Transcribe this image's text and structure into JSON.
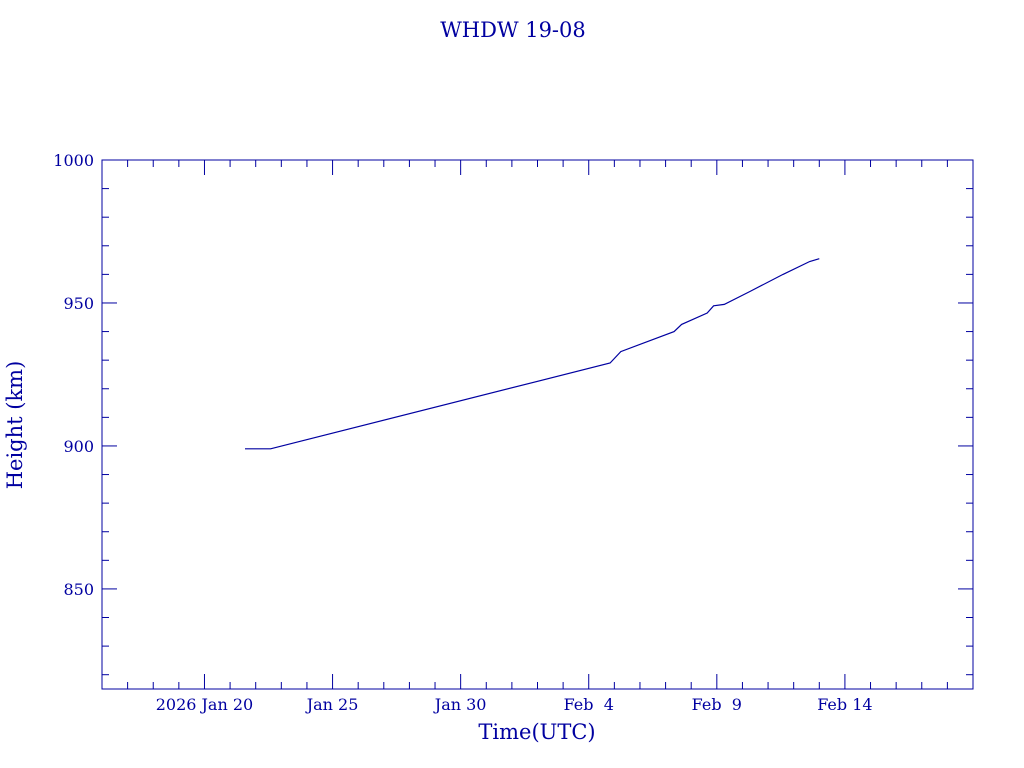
{
  "colors": {
    "ink": "#0000a0",
    "background": "#ffffff"
  },
  "chart_data": {
    "type": "line",
    "title": "WHDW 19-08",
    "xlabel": "Time(UTC)",
    "ylabel": "Height (km)",
    "xlim": [
      "2026-01-16",
      "2026-02-19"
    ],
    "ylim": [
      815,
      1000
    ],
    "y_ticks": [
      850,
      900,
      950,
      1000
    ],
    "x_ticks": [
      {
        "date": "2026-01-20",
        "label": "2026 Jan 20"
      },
      {
        "date": "2026-01-25",
        "label": "Jan 25"
      },
      {
        "date": "2026-01-30",
        "label": "Jan 30"
      },
      {
        "date": "2026-02-04",
        "label": "Feb  4"
      },
      {
        "date": "2026-02-09",
        "label": "Feb  9"
      },
      {
        "date": "2026-02-14",
        "label": "Feb 14"
      }
    ],
    "grid": false,
    "series": [
      {
        "points": [
          {
            "x": "2026-01-21 14:00",
            "y": 899.0
          },
          {
            "x": "2026-01-22 14:00",
            "y": 899.0
          },
          {
            "x": "2026-02-04 20:00",
            "y": 929.0
          },
          {
            "x": "2026-02-05 06:00",
            "y": 933.0
          },
          {
            "x": "2026-02-07 08:00",
            "y": 940.0
          },
          {
            "x": "2026-02-07 15:00",
            "y": 942.5
          },
          {
            "x": "2026-02-08 15:00",
            "y": 946.5
          },
          {
            "x": "2026-02-08 21:00",
            "y": 949.0
          },
          {
            "x": "2026-02-09 07:00",
            "y": 949.5
          },
          {
            "x": "2026-02-10 07:00",
            "y": 954.0
          },
          {
            "x": "2026-02-11 14:00",
            "y": 960.0
          },
          {
            "x": "2026-02-12 15:00",
            "y": 964.5
          },
          {
            "x": "2026-02-13 00:00",
            "y": 965.5
          }
        ]
      }
    ]
  }
}
